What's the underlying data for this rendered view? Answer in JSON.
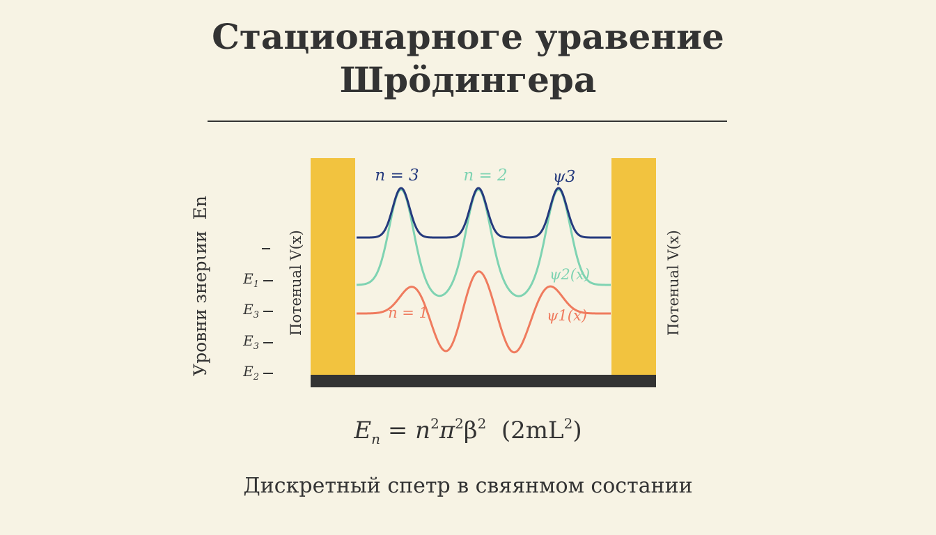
{
  "title_line1": "Стационарноге уравение",
  "title_line2": "Шрӧдингера",
  "axis_label": "Уровни знерɩии",
  "axis_label_symbol": "En",
  "potential_label_left": "Потенuаl V(x)",
  "potential_label_right": "Потенuаl V(x)",
  "energy_ticks": [
    {
      "label": "",
      "sub": ""
    },
    {
      "label": "E",
      "sub": "1"
    },
    {
      "label": "E",
      "sub": "3"
    },
    {
      "label": "E",
      "sub": "3"
    },
    {
      "label": "E",
      "sub": "2"
    }
  ],
  "wave_labels": {
    "n3": "n = 3",
    "n2": "n = 2",
    "psi3": "ψ3",
    "psi2": "ψ2(x)",
    "n1": "n = 1",
    "psi1": "ψ1(x)"
  },
  "formula": {
    "E": "E",
    "E_sub": "n",
    "eq": " = ",
    "n": "n",
    "n_sup": "2",
    "pi": "π",
    "pi_sup": "2",
    "beta": "β",
    "beta_sup": "2",
    "paren_open": "  (2mL",
    "L_sup": "2",
    "paren_close": ")"
  },
  "caption": "Дискретный спетр в свяянмом состании",
  "colors": {
    "background": "#f7f3e4",
    "text": "#333333",
    "wall": "#f2c33f",
    "floor": "#333333",
    "wave_n3": "#253a7d",
    "wave_n2": "#7fd3b2",
    "wave_n1": "#ef7b5e"
  }
}
